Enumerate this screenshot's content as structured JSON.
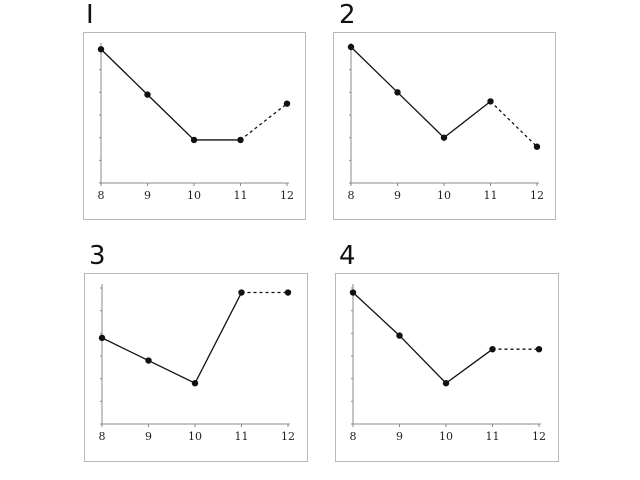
{
  "panels": [
    {
      "number": "I"
    },
    {
      "number": "2"
    },
    {
      "number": "3"
    },
    {
      "number": "4"
    }
  ],
  "chart_data": [
    {
      "type": "line",
      "categories": [
        "8",
        "9",
        "10",
        "11",
        "12"
      ],
      "ylim": [
        0,
        6
      ],
      "series": [
        {
          "values": [
            5.9,
            3.9,
            1.9,
            1.9,
            3.5
          ],
          "style": "solid-then-dashed",
          "dashed_from_index": 3
        }
      ],
      "grid": false
    },
    {
      "type": "line",
      "categories": [
        "8",
        "9",
        "10",
        "11",
        "12"
      ],
      "ylim": [
        0,
        6
      ],
      "series": [
        {
          "values": [
            6.0,
            4.0,
            2.0,
            3.6,
            1.6
          ],
          "style": "solid-then-dashed",
          "dashed_from_index": 3
        }
      ],
      "grid": false
    },
    {
      "type": "line",
      "categories": [
        "8",
        "9",
        "10",
        "11",
        "12"
      ],
      "ylim": [
        0,
        6
      ],
      "series": [
        {
          "values": [
            3.8,
            2.8,
            1.8,
            5.8,
            5.8
          ],
          "style": "solid-then-dashed",
          "dashed_from_index": 3
        }
      ],
      "grid": false
    },
    {
      "type": "line",
      "categories": [
        "8",
        "9",
        "10",
        "11",
        "12"
      ],
      "ylim": [
        0,
        6
      ],
      "series": [
        {
          "values": [
            5.8,
            3.9,
            1.8,
            3.3,
            3.3
          ],
          "style": "solid-then-dashed",
          "dashed_from_index": 3
        }
      ],
      "grid": false
    }
  ],
  "colors": {
    "line": "#111111",
    "axis": "#888888",
    "frame": "#b8b8b8"
  }
}
